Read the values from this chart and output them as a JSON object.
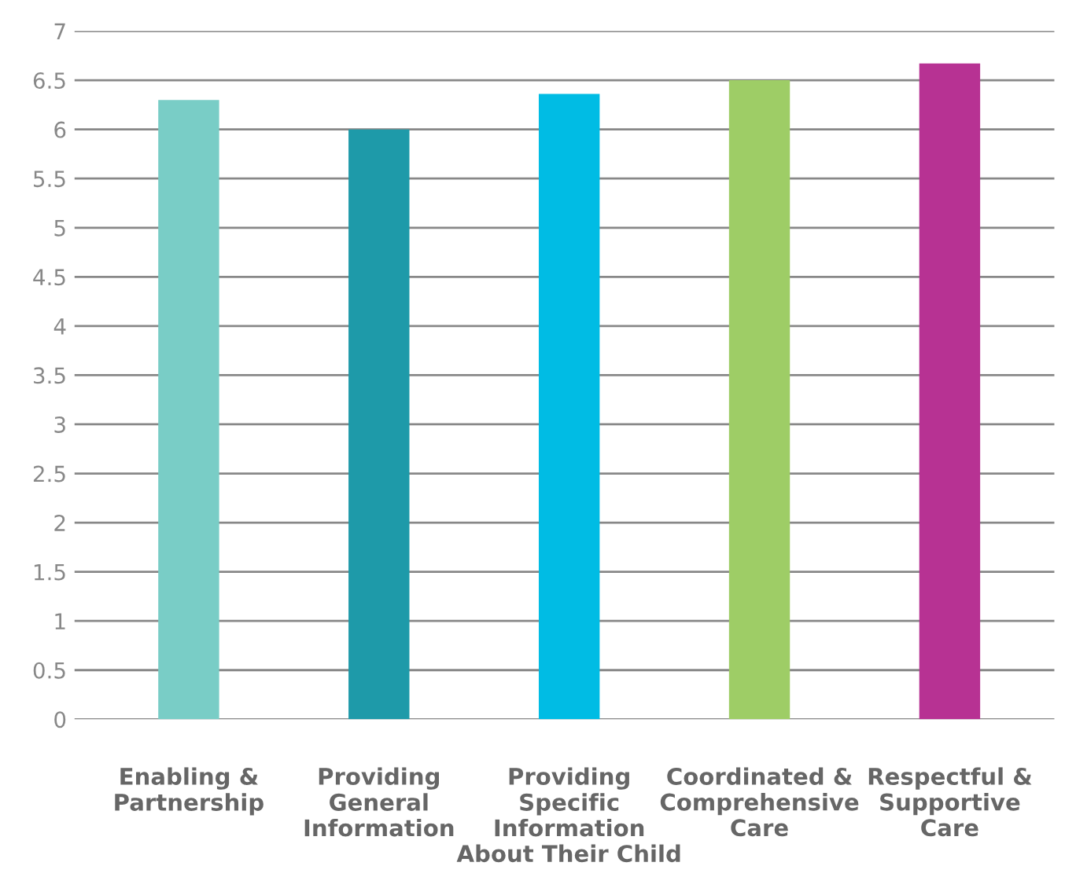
{
  "chart_data": {
    "type": "bar",
    "categories": [
      "Enabling &\nPartnership",
      "Providing\nGeneral\nInformation",
      "Providing\nSpecific\nInformation\nAbout Their Child",
      "Coordinated &\nComprehensive\nCare",
      "Respectful &\nSupportive\nCare"
    ],
    "values": [
      6.3,
      6.0,
      6.36,
      6.5,
      6.67
    ],
    "colors": [
      "#79cdc6",
      "#1e9aa9",
      "#00bce4",
      "#9ecd66",
      "#b73293"
    ],
    "ylim": [
      0,
      7
    ],
    "yticks": [
      0,
      0.5,
      1,
      1.5,
      2,
      2.5,
      3,
      3.5,
      4,
      4.5,
      5,
      5.5,
      6,
      6.5,
      7
    ],
    "grid": "y"
  }
}
